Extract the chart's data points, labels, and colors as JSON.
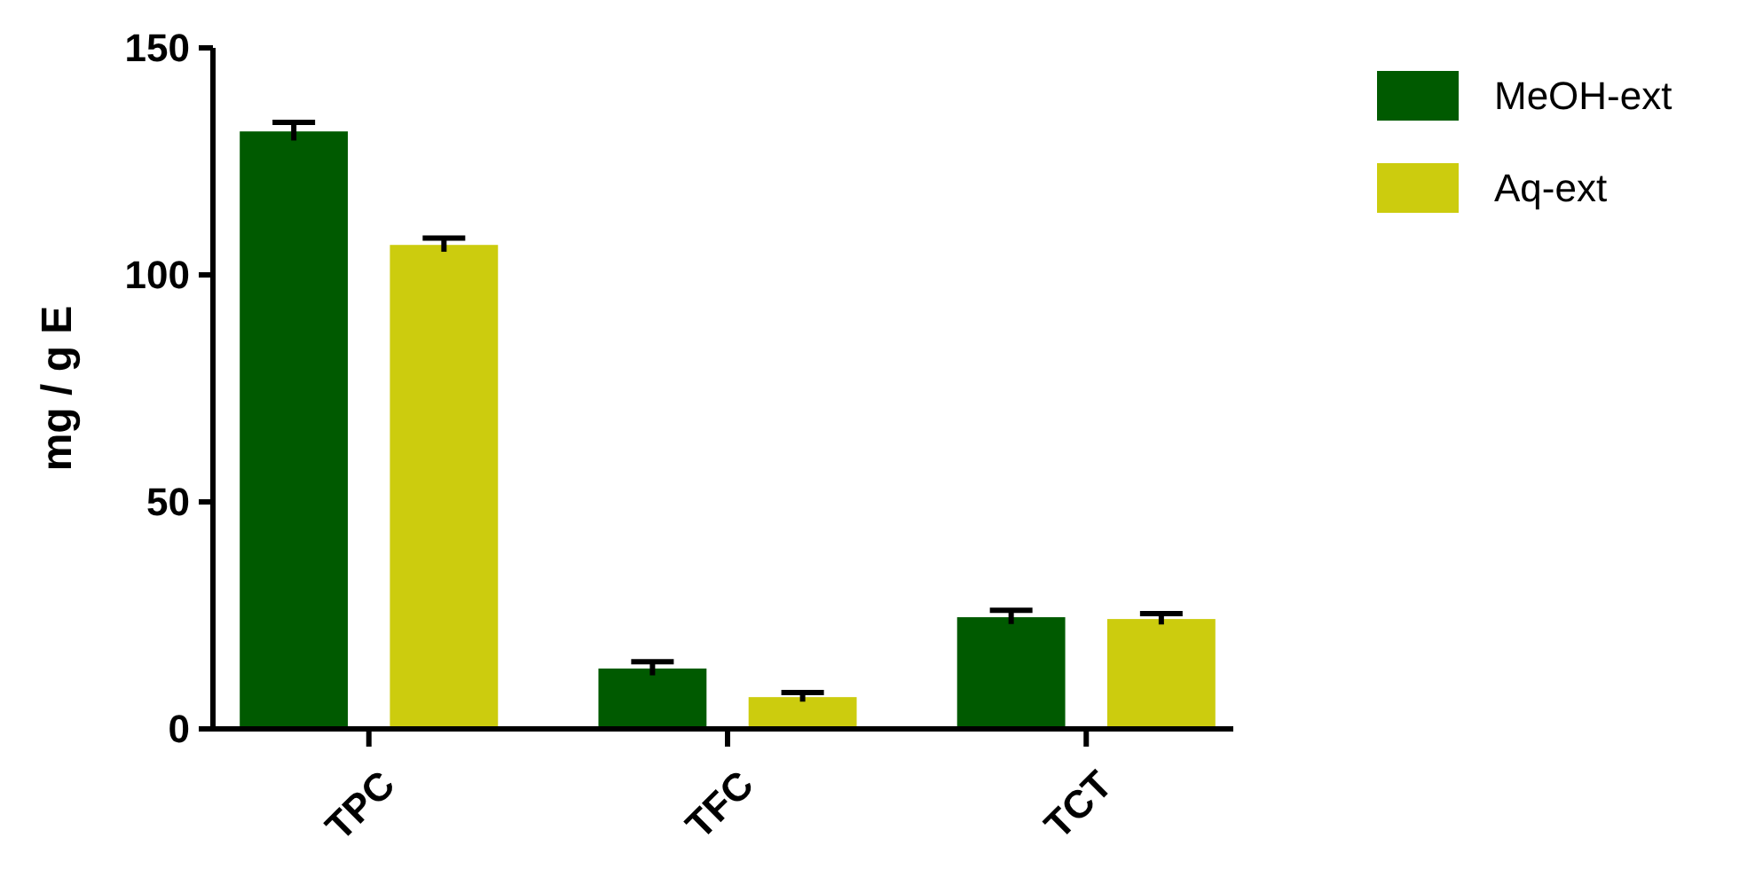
{
  "chart_data": {
    "type": "bar",
    "ylabel": "mg / g E",
    "categories": [
      "TPC",
      "TFC",
      "TCT"
    ],
    "series": [
      {
        "name": "MeOH-ext",
        "color": "#005a00",
        "values": [
          131.6,
          13.3,
          24.6
        ],
        "errors": [
          2,
          1.5,
          1.5
        ]
      },
      {
        "name": "Aq-ext",
        "color": "#cccc0e",
        "values": [
          106.6,
          7,
          24.2
        ],
        "errors": [
          1.5,
          1,
          1.2
        ]
      }
    ],
    "ylim": [
      0,
      150
    ],
    "yticks": [
      0,
      50,
      100,
      150
    ],
    "legend": "top right",
    "grid": false
  }
}
